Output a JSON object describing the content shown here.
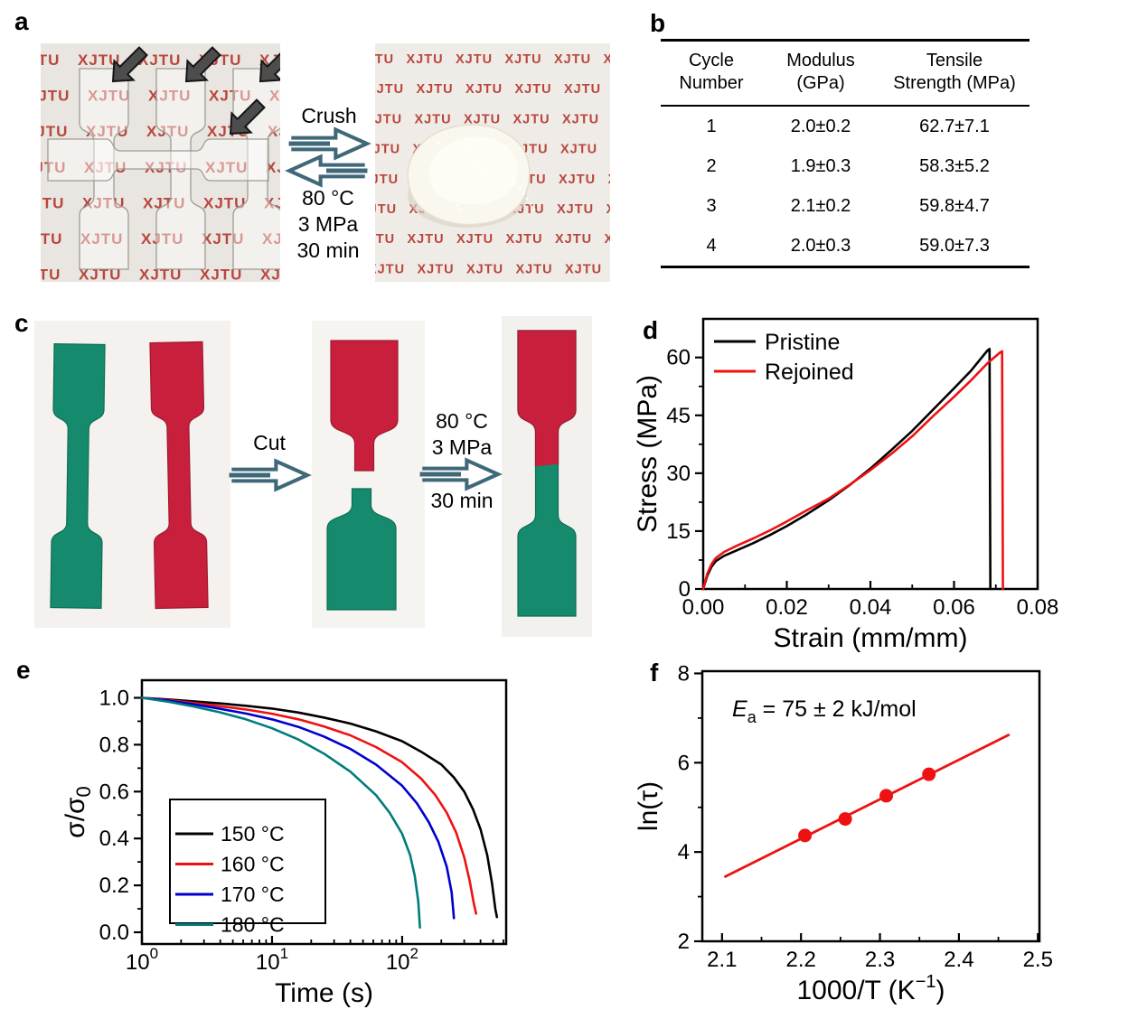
{
  "figure": {
    "labels": {
      "a": "a",
      "b": "b",
      "c": "c",
      "d": "d",
      "e": "e",
      "f": "f"
    },
    "process_arrow_color": "#3f6879",
    "specimen_green": "#168a6c",
    "specimen_red": "#c81f3d",
    "watermark": {
      "text": "XJTU",
      "color": "#b5392f"
    }
  },
  "panel_a": {
    "process": {
      "forward": "Crush",
      "cond1": "80 °C",
      "cond2": "3 MPa",
      "cond3": "30 min"
    }
  },
  "panel_b": {
    "table": {
      "headers": [
        [
          "Cycle",
          "Number"
        ],
        [
          "Modulus",
          "(GPa)"
        ],
        [
          "Tensile",
          "Strength (MPa)"
        ]
      ],
      "rows": [
        [
          "1",
          "2.0±0.2",
          "62.7±7.1"
        ],
        [
          "2",
          "1.9±0.3",
          "58.3±5.2"
        ],
        [
          "3",
          "2.1±0.2",
          "59.8±4.7"
        ],
        [
          "4",
          "2.0±0.3",
          "59.0±7.3"
        ]
      ]
    }
  },
  "panel_c": {
    "cut": "Cut",
    "cond1": "80 °C",
    "cond2": "3 MPa",
    "cond3": "30 min"
  },
  "chart_data": [
    {
      "id": "d",
      "type": "line",
      "xlabel": "Strain (mm/mm)",
      "ylabel": "Stress (MPa)",
      "xlim": [
        0,
        0.08
      ],
      "ylim": [
        0,
        70
      ],
      "grid": false,
      "xticks": [
        0,
        0.02,
        0.04,
        0.06,
        0.08
      ],
      "xtick_labels": [
        "0.00",
        "0.02",
        "0.04",
        "0.06",
        "0.08"
      ],
      "yticks": [
        0,
        15,
        30,
        45,
        60
      ],
      "legend_position": "top-left",
      "series": [
        {
          "name": "Pristine",
          "color": "#000000",
          "points": [
            [
              0,
              0
            ],
            [
              0.001,
              3.5
            ],
            [
              0.002,
              5.8
            ],
            [
              0.003,
              7.2
            ],
            [
              0.005,
              8.6
            ],
            [
              0.008,
              10
            ],
            [
              0.012,
              11.9
            ],
            [
              0.016,
              14
            ],
            [
              0.02,
              16.3
            ],
            [
              0.025,
              19.5
            ],
            [
              0.03,
              23
            ],
            [
              0.035,
              26.9
            ],
            [
              0.04,
              31.2
            ],
            [
              0.045,
              36
            ],
            [
              0.05,
              41
            ],
            [
              0.055,
              46.5
            ],
            [
              0.06,
              52
            ],
            [
              0.064,
              56.5
            ],
            [
              0.068,
              61.8
            ],
            [
              0.0685,
              62.2
            ],
            [
              0.0687,
              0
            ]
          ]
        },
        {
          "name": "Rejoined",
          "color": "#ee1111",
          "points": [
            [
              0,
              0
            ],
            [
              0.001,
              4
            ],
            [
              0.002,
              6.5
            ],
            [
              0.003,
              8
            ],
            [
              0.005,
              9.6
            ],
            [
              0.008,
              11.2
            ],
            [
              0.012,
              13.1
            ],
            [
              0.016,
              15.2
            ],
            [
              0.02,
              17.5
            ],
            [
              0.025,
              20.5
            ],
            [
              0.03,
              23.4
            ],
            [
              0.035,
              27
            ],
            [
              0.04,
              30.8
            ],
            [
              0.045,
              35
            ],
            [
              0.05,
              39.6
            ],
            [
              0.055,
              44.8
            ],
            [
              0.06,
              49.8
            ],
            [
              0.064,
              54
            ],
            [
              0.068,
              58.5
            ],
            [
              0.071,
              61.3
            ],
            [
              0.0715,
              61.6
            ],
            [
              0.0717,
              0
            ]
          ]
        }
      ]
    },
    {
      "id": "e",
      "type": "line",
      "xscale": "log",
      "xlabel": "Time (s)",
      "ylabel_main": "σ/σ",
      "ylabel_sub": "0",
      "xlim": [
        1,
        630
      ],
      "ylim": [
        -0.05,
        1.075
      ],
      "grid": false,
      "xticks": [
        1,
        10,
        100
      ],
      "yticks": [
        0,
        0.2,
        0.4,
        0.6,
        0.8,
        1.0
      ],
      "ytick_labels": [
        "0.0",
        "0.2",
        "0.4",
        "0.6",
        "0.8",
        "1.0"
      ],
      "legend_position": "boxed-left",
      "series": [
        {
          "name": "150 °C",
          "color": "#000000",
          "points": [
            [
              1,
              1
            ],
            [
              1.6,
              0.993
            ],
            [
              2.5,
              0.985
            ],
            [
              4,
              0.976
            ],
            [
              6.3,
              0.966
            ],
            [
              10,
              0.954
            ],
            [
              16,
              0.937
            ],
            [
              25,
              0.916
            ],
            [
              40,
              0.89
            ],
            [
              63,
              0.857
            ],
            [
              100,
              0.815
            ],
            [
              140,
              0.77
            ],
            [
              200,
              0.715
            ],
            [
              250,
              0.66
            ],
            [
              300,
              0.6
            ],
            [
              350,
              0.525
            ],
            [
              400,
              0.44
            ],
            [
              450,
              0.33
            ],
            [
              490,
              0.21
            ],
            [
              520,
              0.1
            ],
            [
              535,
              0.065
            ]
          ]
        },
        {
          "name": "160 °C",
          "color": "#ee1111",
          "points": [
            [
              1,
              1
            ],
            [
              1.6,
              0.99
            ],
            [
              2.5,
              0.978
            ],
            [
              4,
              0.964
            ],
            [
              6.3,
              0.95
            ],
            [
              10,
              0.932
            ],
            [
              16,
              0.908
            ],
            [
              25,
              0.878
            ],
            [
              40,
              0.84
            ],
            [
              63,
              0.79
            ],
            [
              100,
              0.725
            ],
            [
              140,
              0.655
            ],
            [
              180,
              0.585
            ],
            [
              220,
              0.51
            ],
            [
              260,
              0.425
            ],
            [
              300,
              0.32
            ],
            [
              330,
              0.22
            ],
            [
              355,
              0.125
            ],
            [
              370,
              0.08
            ]
          ]
        },
        {
          "name": "170 °C",
          "color": "#0000cd",
          "points": [
            [
              1,
              1
            ],
            [
              1.6,
              0.988
            ],
            [
              2.5,
              0.972
            ],
            [
              4,
              0.953
            ],
            [
              6.3,
              0.933
            ],
            [
              10,
              0.908
            ],
            [
              16,
              0.876
            ],
            [
              25,
              0.835
            ],
            [
              40,
              0.782
            ],
            [
              63,
              0.715
            ],
            [
              100,
              0.625
            ],
            [
              130,
              0.55
            ],
            [
              160,
              0.47
            ],
            [
              190,
              0.385
            ],
            [
              220,
              0.28
            ],
            [
              240,
              0.17
            ],
            [
              250,
              0.06
            ]
          ]
        },
        {
          "name": "180 °C",
          "color": "#007c7c",
          "points": [
            [
              1,
              1
            ],
            [
              1.6,
              0.983
            ],
            [
              2.5,
              0.963
            ],
            [
              4,
              0.938
            ],
            [
              6.3,
              0.908
            ],
            [
              10,
              0.87
            ],
            [
              16,
              0.822
            ],
            [
              25,
              0.762
            ],
            [
              40,
              0.685
            ],
            [
              63,
              0.585
            ],
            [
              80,
              0.51
            ],
            [
              100,
              0.42
            ],
            [
              115,
              0.33
            ],
            [
              125,
              0.24
            ],
            [
              133,
              0.13
            ],
            [
              137,
              0.02
            ]
          ]
        }
      ]
    },
    {
      "id": "f",
      "type": "scatter-line",
      "xlabel_main": "1000/T (K",
      "xlabel_sup": "−1",
      "xlabel_end": ")",
      "ylabel": "ln(τ)",
      "annotation": {
        "symbol": "E",
        "symbol_sub": "a",
        "text": " = 75 ± 2 kJ/mol"
      },
      "xlim": [
        2.075,
        2.502
      ],
      "ylim": [
        2,
        8.05
      ],
      "grid": false,
      "xticks": [
        2.1,
        2.2,
        2.3,
        2.4,
        2.5
      ],
      "xtick_labels": [
        "2.1",
        "2.2",
        "2.3",
        "2.4",
        "2.5"
      ],
      "yticks": [
        2,
        4,
        6,
        8
      ],
      "color": "#ee1111",
      "fit_line": [
        [
          2.103,
          3.44
        ],
        [
          2.464,
          6.63
        ]
      ],
      "points": [
        [
          2.205,
          4.37
        ],
        [
          2.256,
          4.74
        ],
        [
          2.308,
          5.26
        ],
        [
          2.362,
          5.74
        ]
      ]
    }
  ]
}
